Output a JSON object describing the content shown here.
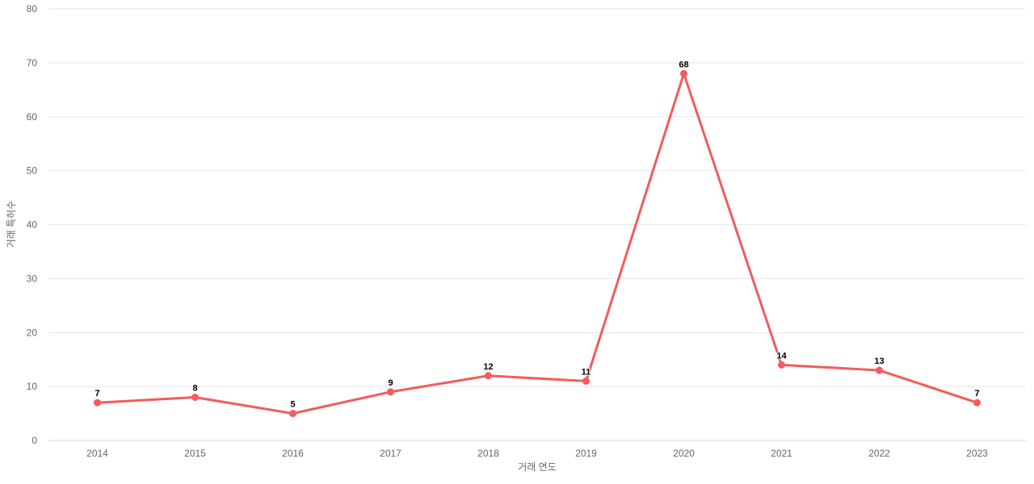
{
  "chart_data": {
    "type": "line",
    "title": "",
    "categories": [
      "2014",
      "2015",
      "2016",
      "2017",
      "2018",
      "2019",
      "2020",
      "2021",
      "2022",
      "2023"
    ],
    "series": [
      {
        "name": "거래 특허수",
        "values": [
          7,
          8,
          5,
          9,
          12,
          11,
          68,
          14,
          13,
          7
        ]
      }
    ],
    "xlabel": "거래 연도",
    "ylabel": "거래 특허수",
    "ylim": [
      0,
      80
    ],
    "ytick_interval": 10,
    "yticks": [
      0,
      10,
      20,
      30,
      40,
      50,
      60,
      70,
      80
    ],
    "grid": true,
    "legend_position": "none",
    "data_labels_visible": true,
    "colors": {
      "series_line": "#f45b5b",
      "series_marker": "#f45b5b",
      "gridline": "#e6e6e6",
      "axis_line": "#ccd6eb",
      "tick_label": "#666666",
      "axis_title": "#666666",
      "data_label": "#000000",
      "background": "#ffffff"
    }
  }
}
